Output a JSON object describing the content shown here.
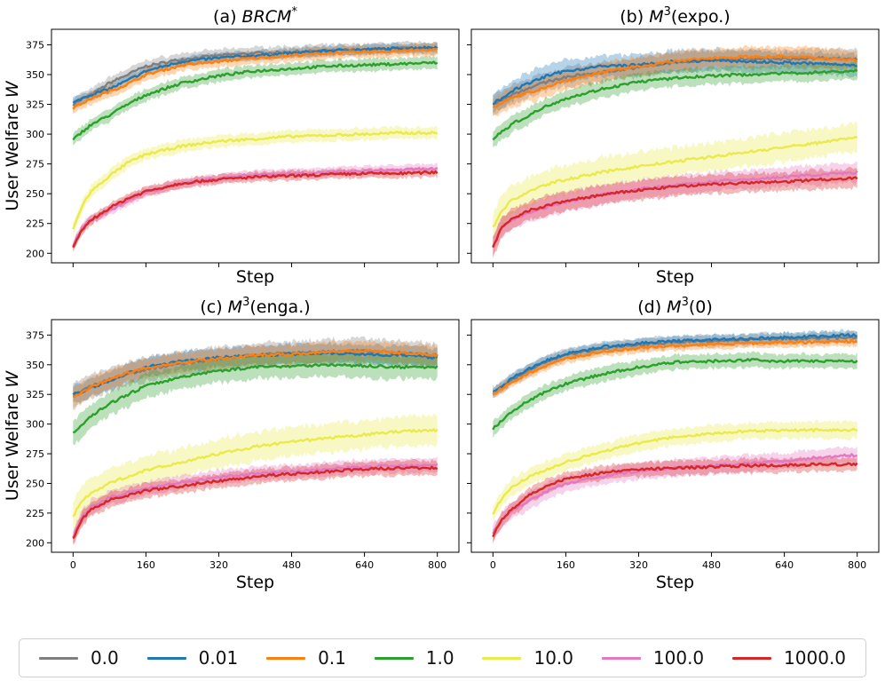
{
  "chart_data": [
    {
      "type": "line",
      "title": "(a) $BRCM^*$",
      "title_plain": "(a) ",
      "title_math": "BRCM",
      "title_sup": "*",
      "xlabel": "Step",
      "ylabel": "User Welfare W",
      "xlim": [
        0,
        800
      ],
      "ylim": [
        192,
        388
      ],
      "series": [
        {
          "name": "0.0",
          "x": [
            0,
            20,
            40,
            80,
            120,
            160,
            240,
            320,
            400,
            480,
            560,
            640,
            720,
            800
          ],
          "values": [
            325,
            330,
            333,
            343,
            350,
            357,
            363,
            366,
            368,
            369,
            370,
            371,
            372,
            372
          ],
          "band": 5
        },
        {
          "name": "0.01",
          "x": [
            0,
            20,
            40,
            80,
            120,
            160,
            240,
            320,
            400,
            480,
            560,
            640,
            720,
            800
          ],
          "values": [
            326,
            330,
            333,
            338,
            345,
            353,
            361,
            364,
            366,
            368,
            370,
            371,
            372,
            373
          ],
          "band": 4
        },
        {
          "name": "0.1",
          "x": [
            0,
            20,
            40,
            80,
            120,
            160,
            240,
            320,
            400,
            480,
            560,
            640,
            720,
            800
          ],
          "values": [
            322,
            326,
            330,
            336,
            342,
            350,
            358,
            361,
            364,
            366,
            368,
            369,
            370,
            371
          ],
          "band": 5
        },
        {
          "name": "1.0",
          "x": [
            0,
            20,
            40,
            80,
            120,
            160,
            240,
            320,
            400,
            480,
            560,
            640,
            720,
            800
          ],
          "values": [
            295,
            302,
            308,
            316,
            325,
            333,
            343,
            349,
            353,
            355,
            357,
            358,
            359,
            360
          ],
          "band": 5
        },
        {
          "name": "10.0",
          "x": [
            0,
            20,
            40,
            80,
            120,
            160,
            240,
            320,
            400,
            480,
            560,
            640,
            720,
            800
          ],
          "values": [
            220,
            240,
            252,
            265,
            276,
            283,
            290,
            294,
            296,
            298,
            299,
            300,
            301,
            301
          ],
          "band": 5
        },
        {
          "name": "100.0",
          "x": [
            0,
            20,
            40,
            80,
            120,
            160,
            240,
            320,
            400,
            480,
            560,
            640,
            720,
            800
          ],
          "values": [
            206,
            222,
            228,
            236,
            244,
            251,
            259,
            263,
            266,
            267,
            268,
            269,
            270,
            271
          ],
          "band": 4
        },
        {
          "name": "1000.0",
          "x": [
            0,
            20,
            40,
            80,
            120,
            160,
            240,
            320,
            400,
            480,
            560,
            640,
            720,
            800
          ],
          "values": [
            204,
            220,
            228,
            238,
            246,
            252,
            259,
            262,
            264,
            265,
            266,
            267,
            267,
            268
          ],
          "band": 4
        }
      ]
    },
    {
      "type": "line",
      "title": "(b) $M^3$(expo.)",
      "title_plain": "(b) ",
      "title_math": "M",
      "title_sup": "3",
      "title_suffix": "(expo.)",
      "xlabel": "Step",
      "ylabel": "",
      "xlim": [
        0,
        800
      ],
      "ylim": [
        192,
        388
      ],
      "series": [
        {
          "name": "0.0",
          "x": [
            0,
            20,
            40,
            80,
            120,
            160,
            240,
            320,
            400,
            480,
            560,
            640,
            720,
            800
          ],
          "values": [
            325,
            329,
            333,
            339,
            344,
            348,
            352,
            356,
            360,
            362,
            363,
            363,
            364,
            363
          ],
          "band": 8
        },
        {
          "name": "0.01",
          "x": [
            0,
            20,
            40,
            80,
            120,
            160,
            240,
            320,
            400,
            480,
            560,
            640,
            720,
            800
          ],
          "values": [
            326,
            330,
            336,
            343,
            349,
            353,
            357,
            358,
            361,
            362,
            361,
            360,
            359,
            358
          ],
          "band": 9
        },
        {
          "name": "0.1",
          "x": [
            0,
            20,
            40,
            80,
            120,
            160,
            240,
            320,
            400,
            480,
            560,
            640,
            720,
            800
          ],
          "values": [
            323,
            326,
            330,
            335,
            340,
            345,
            352,
            357,
            361,
            364,
            365,
            365,
            364,
            362
          ],
          "band": 8
        },
        {
          "name": "1.0",
          "x": [
            0,
            20,
            40,
            80,
            120,
            160,
            240,
            320,
            400,
            480,
            560,
            640,
            720,
            800
          ],
          "values": [
            296,
            302,
            308,
            316,
            324,
            330,
            338,
            344,
            347,
            349,
            350,
            351,
            352,
            353
          ],
          "band": 7
        },
        {
          "name": "10.0",
          "x": [
            0,
            20,
            40,
            80,
            120,
            160,
            240,
            320,
            400,
            480,
            560,
            640,
            720,
            800
          ],
          "values": [
            222,
            236,
            244,
            252,
            258,
            262,
            268,
            273,
            277,
            281,
            285,
            289,
            293,
            298
          ],
          "band": 12
        },
        {
          "name": "100.0",
          "x": [
            0,
            20,
            40,
            80,
            120,
            160,
            240,
            320,
            400,
            480,
            560,
            640,
            720,
            800
          ],
          "values": [
            206,
            222,
            228,
            234,
            239,
            243,
            249,
            254,
            257,
            260,
            262,
            264,
            266,
            268
          ],
          "band": 8
        },
        {
          "name": "1000.0",
          "x": [
            0,
            20,
            40,
            80,
            120,
            160,
            240,
            320,
            400,
            480,
            560,
            640,
            720,
            800
          ],
          "values": [
            205,
            222,
            228,
            236,
            240,
            244,
            249,
            253,
            256,
            258,
            259,
            260,
            262,
            263
          ],
          "band": 8
        }
      ]
    },
    {
      "type": "line",
      "title": "(c) $M^3$(enga.)",
      "title_plain": "(c) ",
      "title_math": "M",
      "title_sup": "3",
      "title_suffix": "(enga.)",
      "xlabel": "Step",
      "ylabel": "User Welfare W",
      "xlim": [
        0,
        800
      ],
      "ylim": [
        192,
        388
      ],
      "series": [
        {
          "name": "0.0",
          "x": [
            0,
            20,
            40,
            80,
            120,
            160,
            240,
            320,
            400,
            480,
            560,
            640,
            720,
            800
          ],
          "values": [
            324,
            328,
            332,
            338,
            342,
            346,
            351,
            355,
            358,
            360,
            361,
            362,
            360,
            358
          ],
          "band": 10
        },
        {
          "name": "0.01",
          "x": [
            0,
            20,
            40,
            80,
            120,
            160,
            240,
            320,
            400,
            480,
            560,
            640,
            720,
            800
          ],
          "values": [
            325,
            327,
            331,
            336,
            343,
            348,
            353,
            356,
            358,
            359,
            360,
            359,
            358,
            356
          ],
          "band": 8
        },
        {
          "name": "0.1",
          "x": [
            0,
            20,
            40,
            80,
            120,
            160,
            240,
            320,
            400,
            480,
            560,
            640,
            720,
            800
          ],
          "values": [
            323,
            327,
            331,
            338,
            343,
            347,
            352,
            355,
            358,
            359,
            361,
            362,
            360,
            358
          ],
          "band": 8
        },
        {
          "name": "1.0",
          "x": [
            0,
            20,
            40,
            80,
            120,
            160,
            240,
            320,
            400,
            480,
            560,
            640,
            720,
            800
          ],
          "values": [
            293,
            300,
            307,
            317,
            325,
            332,
            340,
            345,
            348,
            349,
            350,
            349,
            348,
            348
          ],
          "band": 10
        },
        {
          "name": "10.0",
          "x": [
            0,
            20,
            40,
            80,
            120,
            160,
            240,
            320,
            400,
            480,
            560,
            640,
            720,
            800
          ],
          "values": [
            222,
            236,
            242,
            250,
            256,
            261,
            268,
            275,
            281,
            285,
            288,
            291,
            294,
            295
          ],
          "band": 12
        },
        {
          "name": "100.0",
          "x": [
            0,
            20,
            40,
            80,
            120,
            160,
            240,
            320,
            400,
            480,
            560,
            640,
            720,
            800
          ],
          "values": [
            205,
            222,
            230,
            238,
            242,
            246,
            251,
            255,
            258,
            260,
            262,
            264,
            265,
            266
          ],
          "band": 6
        },
        {
          "name": "1000.0",
          "x": [
            0,
            20,
            40,
            80,
            120,
            160,
            240,
            320,
            400,
            480,
            560,
            640,
            720,
            800
          ],
          "values": [
            203,
            220,
            228,
            236,
            240,
            244,
            248,
            252,
            256,
            258,
            260,
            262,
            263,
            263
          ],
          "band": 6
        }
      ]
    },
    {
      "type": "line",
      "title": "(d) $M^3$(0)",
      "title_plain": "(d) ",
      "title_math": "M",
      "title_sup": "3",
      "title_suffix": "(0)",
      "xlabel": "Step",
      "ylabel": "",
      "xlim": [
        0,
        800
      ],
      "ylim": [
        192,
        388
      ],
      "series": [
        {
          "name": "0.0",
          "x": [
            0,
            20,
            40,
            80,
            120,
            160,
            240,
            320,
            400,
            480,
            560,
            640,
            720,
            800
          ],
          "values": [
            326,
            331,
            337,
            346,
            353,
            358,
            364,
            367,
            369,
            370,
            371,
            372,
            372,
            373
          ],
          "band": 5
        },
        {
          "name": "0.01",
          "x": [
            0,
            20,
            40,
            80,
            120,
            160,
            240,
            320,
            400,
            480,
            560,
            640,
            720,
            800
          ],
          "values": [
            327,
            332,
            338,
            347,
            354,
            359,
            365,
            368,
            370,
            371,
            372,
            373,
            374,
            375
          ],
          "band": 4
        },
        {
          "name": "0.1",
          "x": [
            0,
            20,
            40,
            80,
            120,
            160,
            240,
            320,
            400,
            480,
            560,
            640,
            720,
            800
          ],
          "values": [
            325,
            330,
            335,
            343,
            350,
            355,
            361,
            364,
            366,
            367,
            368,
            369,
            369,
            370
          ],
          "band": 4
        },
        {
          "name": "1.0",
          "x": [
            0,
            20,
            40,
            80,
            120,
            160,
            240,
            320,
            400,
            480,
            560,
            640,
            720,
            800
          ],
          "values": [
            296,
            303,
            310,
            320,
            328,
            334,
            342,
            348,
            352,
            353,
            354,
            353,
            353,
            353
          ],
          "band": 6
        },
        {
          "name": "10.0",
          "x": [
            0,
            20,
            40,
            80,
            120,
            160,
            240,
            320,
            400,
            480,
            560,
            640,
            720,
            800
          ],
          "values": [
            224,
            238,
            246,
            256,
            262,
            268,
            277,
            284,
            289,
            292,
            294,
            295,
            295,
            295
          ],
          "band": 7
        },
        {
          "name": "100.0",
          "x": [
            0,
            20,
            40,
            80,
            120,
            160,
            240,
            320,
            400,
            480,
            560,
            640,
            720,
            800
          ],
          "values": [
            208,
            220,
            226,
            236,
            244,
            250,
            256,
            260,
            263,
            265,
            267,
            269,
            272,
            274
          ],
          "band": 7
        },
        {
          "name": "1000.0",
          "x": [
            0,
            20,
            40,
            80,
            120,
            160,
            240,
            320,
            400,
            480,
            560,
            640,
            720,
            800
          ],
          "values": [
            206,
            220,
            228,
            240,
            248,
            254,
            259,
            262,
            263,
            264,
            265,
            265,
            266,
            266
          ],
          "band": 6
        }
      ]
    }
  ],
  "xticks": [
    0,
    160,
    320,
    480,
    640,
    800
  ],
  "xtick_labels": [
    "0",
    "160",
    "320",
    "480",
    "640",
    "800"
  ],
  "yticks": [
    200,
    225,
    250,
    275,
    300,
    325,
    350,
    375
  ],
  "ytick_labels": [
    "200",
    "225",
    "250",
    "275",
    "300",
    "325",
    "350",
    "375"
  ],
  "legend": {
    "placement": "bottom",
    "entries": [
      {
        "label": "0.0",
        "color": "#7f7f7f"
      },
      {
        "label": "0.01",
        "color": "#1f77b4"
      },
      {
        "label": "0.1",
        "color": "#ff7f0e"
      },
      {
        "label": "1.0",
        "color": "#2ca02c"
      },
      {
        "label": "10.0",
        "color": "#eaea4a"
      },
      {
        "label": "100.0",
        "color": "#e377c2"
      },
      {
        "label": "1000.0",
        "color": "#d62728"
      }
    ]
  }
}
